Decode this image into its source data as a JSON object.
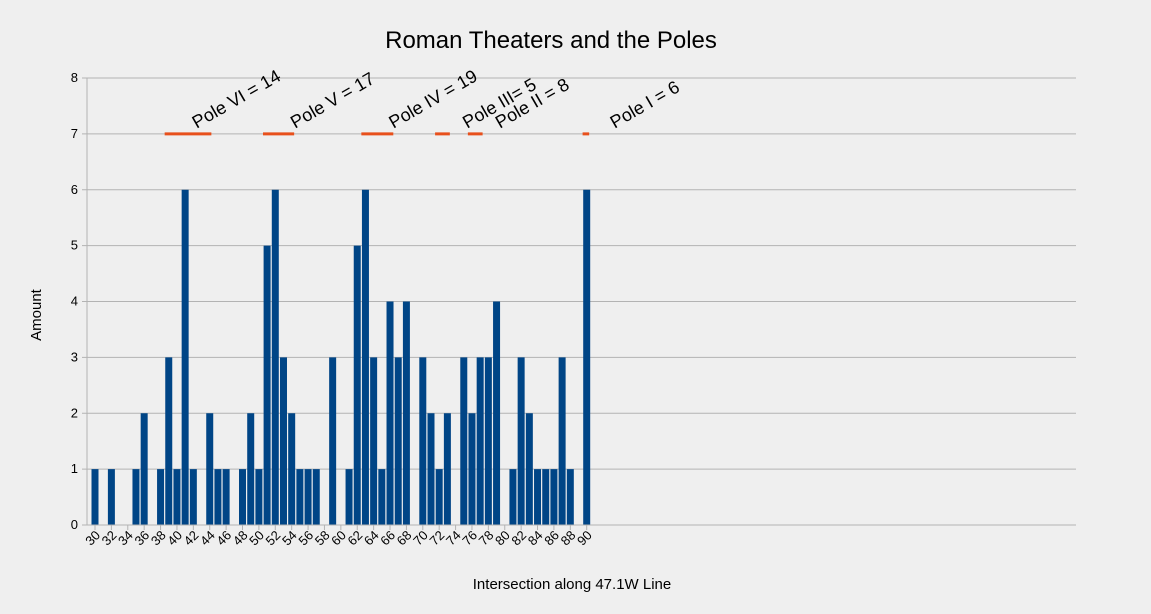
{
  "chart_data": {
    "type": "bar",
    "title": "Roman Theaters and the Poles",
    "xlabel": "Intersection along 47.1W Line",
    "ylabel": "Amount",
    "ylim": [
      0,
      8
    ],
    "yticks": [
      "0",
      "1",
      "2",
      "3",
      "4",
      "5",
      "6",
      "7",
      "8"
    ],
    "xlim": [
      30,
      90
    ],
    "xticks": [
      "30",
      "32",
      "34",
      "36",
      "38",
      "40",
      "42",
      "44",
      "46",
      "48",
      "50",
      "52",
      "54",
      "56",
      "58",
      "60",
      "62",
      "64",
      "66",
      "68",
      "70",
      "72",
      "74",
      "76",
      "78",
      "80",
      "82",
      "84",
      "86",
      "88",
      "90"
    ],
    "grid": true,
    "bar_color": "#004586",
    "x": [
      30,
      31,
      32,
      33,
      34,
      35,
      36,
      37,
      38,
      39,
      40,
      41,
      42,
      43,
      44,
      45,
      46,
      47,
      48,
      49,
      50,
      51,
      52,
      53,
      54,
      55,
      56,
      57,
      58,
      59,
      60,
      61,
      62,
      63,
      64,
      65,
      66,
      67,
      68,
      69,
      70,
      71,
      72,
      73,
      74,
      75,
      76,
      77,
      78,
      79,
      80,
      81,
      82,
      83,
      84,
      85,
      86,
      87,
      88,
      89,
      90
    ],
    "values": [
      1,
      0,
      1,
      0,
      0,
      1,
      2,
      0,
      1,
      3,
      1,
      6,
      1,
      0,
      2,
      1,
      1,
      0,
      1,
      2,
      1,
      5,
      6,
      3,
      2,
      1,
      1,
      1,
      0,
      3,
      0,
      1,
      5,
      6,
      3,
      1,
      4,
      3,
      4,
      0,
      3,
      2,
      1,
      2,
      0,
      3,
      2,
      3,
      3,
      4,
      0,
      1,
      3,
      2,
      1,
      1,
      1,
      3,
      1,
      0,
      6
    ],
    "pole_color": "#e8501c",
    "pole_ranges": [
      {
        "label": "Pole VI = 14",
        "start": 38.5,
        "end": 44.2,
        "y": 7
      },
      {
        "label": "Pole V = 17",
        "start": 50.5,
        "end": 54.3,
        "y": 7
      },
      {
        "label": "Pole IV = 19",
        "start": 62.5,
        "end": 66.4,
        "y": 7
      },
      {
        "label": "Pole III= 5",
        "start": 71.5,
        "end": 73.3,
        "y": 7
      },
      {
        "label": "Pole II = 8",
        "start": 75.5,
        "end": 77.3,
        "y": 7
      },
      {
        "label": "Pole I = 6",
        "start": 89.5,
        "end": 90.3,
        "y": 7
      }
    ]
  }
}
